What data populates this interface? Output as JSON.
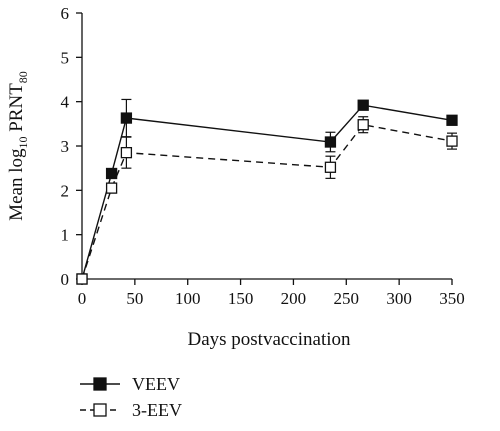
{
  "chart_data": {
    "type": "line",
    "xlabel": "Days postvaccination",
    "ylabel": {
      "main": "Mean log",
      "sub": "10",
      "rest": " PRNT",
      "sub2": "80"
    },
    "xlim": [
      0,
      350
    ],
    "ylim": [
      0,
      6
    ],
    "xticks": [
      0,
      50,
      100,
      150,
      200,
      250,
      300,
      350
    ],
    "yticks": [
      0,
      1,
      2,
      3,
      4,
      5,
      6
    ],
    "grid": false,
    "legend_position": "bottom-left",
    "series": [
      {
        "name": "VEEV",
        "marker": "filled-square",
        "line": "solid",
        "color": "#111111",
        "x": [
          0,
          28,
          42,
          235,
          266,
          350
        ],
        "y": [
          0.0,
          2.38,
          3.63,
          3.09,
          3.92,
          3.58
        ],
        "err": [
          0.0,
          0.05,
          0.42,
          0.22,
          0.08,
          0.07
        ]
      },
      {
        "name": "3-EEV",
        "marker": "open-square",
        "line": "dashed",
        "color": "#111111",
        "x": [
          0,
          28,
          42,
          235,
          266,
          350
        ],
        "y": [
          0.0,
          2.05,
          2.85,
          2.52,
          3.48,
          3.11
        ],
        "err": [
          0.0,
          0.08,
          0.35,
          0.25,
          0.18,
          0.18
        ]
      }
    ]
  }
}
